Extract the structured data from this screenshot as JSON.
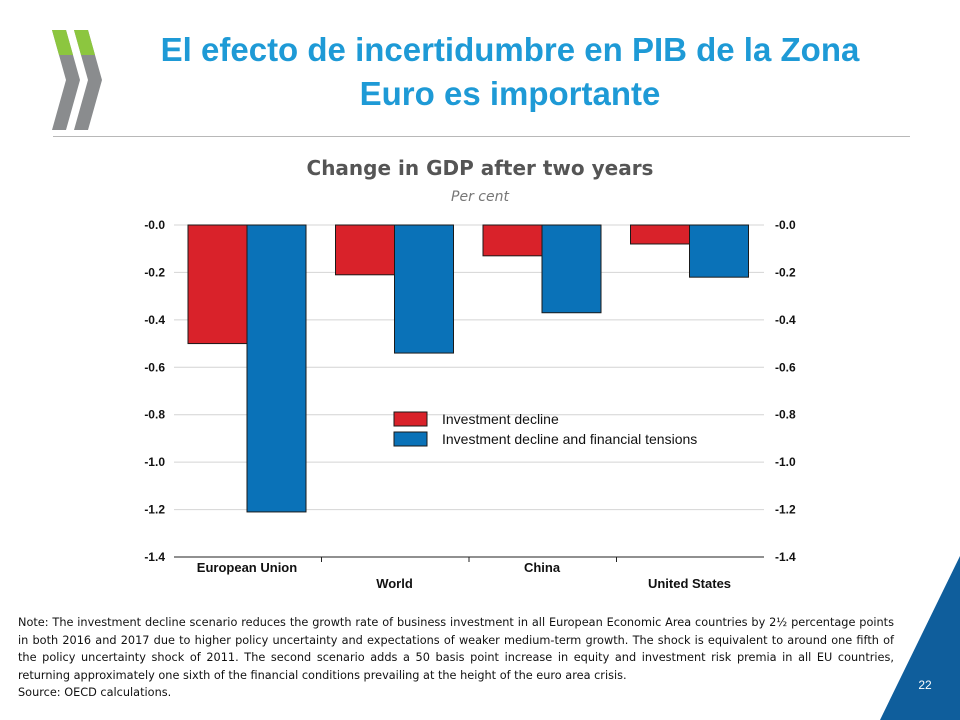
{
  "slide": {
    "title": "El efecto de incertidumbre en PIB de la Zona Euro es importante",
    "page_number": "22"
  },
  "colors": {
    "title": "#1e9ad6",
    "series_1": "#d9222a",
    "series_2": "#0a72b8",
    "logo": "#8a8c8e",
    "logo_accent": "#8cc63f",
    "corner": "#0f5e9c"
  },
  "icons": {
    "logo": "oecd-chevron-logo"
  },
  "note": {
    "text": "Note: The investment decline scenario reduces the growth rate of business investment in all European Economic Area countries by 2½ percentage points in both 2016 and 2017 due to higher policy uncertainty and expectations of weaker medium-term growth. The shock is equivalent to around one fifth of the policy uncertainty shock of 2011. The second scenario adds a 50 basis point increase in equity and investment risk premia in all EU countries, returning approximately one sixth of the financial conditions prevailing at the height of the euro area crisis.",
    "source": "Source: OECD calculations."
  },
  "chart_data": {
    "type": "bar",
    "title": "Change in GDP after two years",
    "subtitle": "Per cent",
    "categories": [
      "European Union",
      "World",
      "China",
      "United States"
    ],
    "series": [
      {
        "name": "Investment decline",
        "values": [
          -0.5,
          -0.21,
          -0.13,
          -0.08
        ]
      },
      {
        "name": "Investment decline and financial tensions",
        "values": [
          -1.21,
          -0.54,
          -0.37,
          -0.22
        ]
      }
    ],
    "ylim": [
      -1.4,
      0
    ],
    "yticks": [
      "-0.0",
      "-0.2",
      "-0.4",
      "-0.6",
      "-0.8",
      "-1.0",
      "-1.2",
      "-1.4"
    ],
    "ytick_values": [
      0,
      -0.2,
      -0.4,
      -0.6,
      -0.8,
      -1.0,
      -1.2,
      -1.4
    ],
    "dual_axis": true,
    "grid": true,
    "legend_position": "center-right",
    "xlabel": "",
    "ylabel": ""
  }
}
